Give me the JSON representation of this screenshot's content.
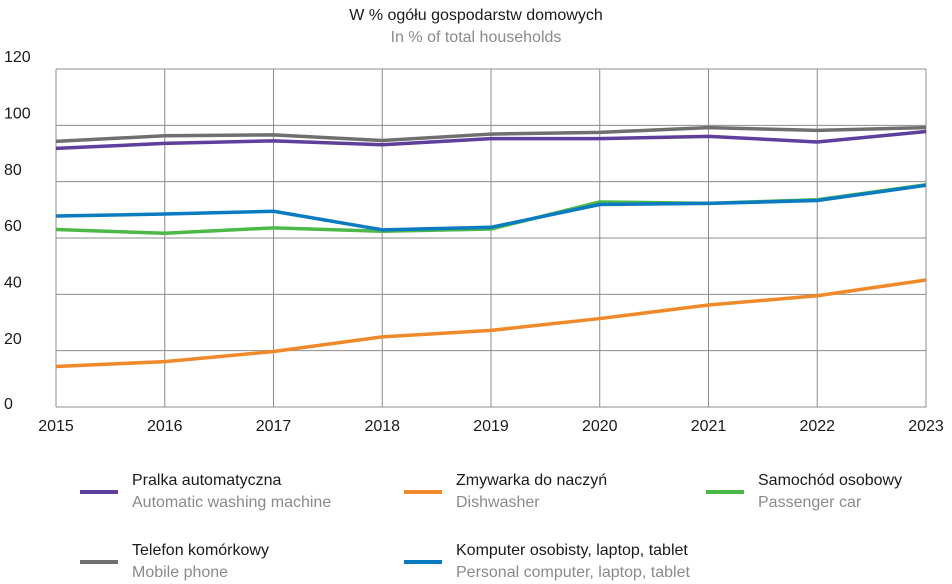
{
  "chart_data": {
    "type": "line",
    "title": "W % ogółu gospodarstw domowych",
    "subtitle": "In % of total households",
    "x": [
      2015,
      2016,
      2017,
      2018,
      2019,
      2020,
      2021,
      2022,
      2023
    ],
    "xlim": [
      2015,
      2023
    ],
    "xticks": [
      2015,
      2016,
      2017,
      2018,
      2019,
      2020,
      2021,
      2022,
      2023
    ],
    "ylim": [
      0,
      120
    ],
    "yticks": [
      0,
      20,
      40,
      60,
      80,
      100,
      120
    ],
    "grid": true,
    "series": [
      {
        "name": "Pralka automatyczna",
        "name_en": "Automatic washing machine",
        "color": "#5e3f9c",
        "values": [
          91.8,
          93.6,
          94.5,
          93.1,
          95.3,
          95.3,
          96.1,
          94.1,
          97.8
        ]
      },
      {
        "name": "Zmywarka do naczyń",
        "name_en": "Dishwasher",
        "color": "#f0892a",
        "values": [
          14.4,
          16.1,
          19.7,
          24.9,
          27.2,
          31.4,
          36.2,
          39.5,
          45.1
        ]
      },
      {
        "name": "Samochód osobowy",
        "name_en": "Passenger car",
        "color": "#4cb848",
        "values": [
          63.0,
          61.7,
          63.6,
          62.4,
          63.2,
          72.8,
          72.3,
          73.6,
          78.9
        ]
      },
      {
        "name": "Telefon komórkowy",
        "name_en": "Mobile phone",
        "color": "#6f6f6f",
        "values": [
          94.3,
          96.3,
          96.6,
          94.6,
          96.9,
          97.5,
          99.2,
          98.2,
          99.2
        ]
      },
      {
        "name": "Komputer osobisty, laptop, tablet",
        "name_en": "Personal computer, laptop, tablet",
        "color": "#0a7bc1",
        "values": [
          67.8,
          68.5,
          69.5,
          62.9,
          63.8,
          71.9,
          72.3,
          73.3,
          78.7
        ]
      }
    ]
  }
}
